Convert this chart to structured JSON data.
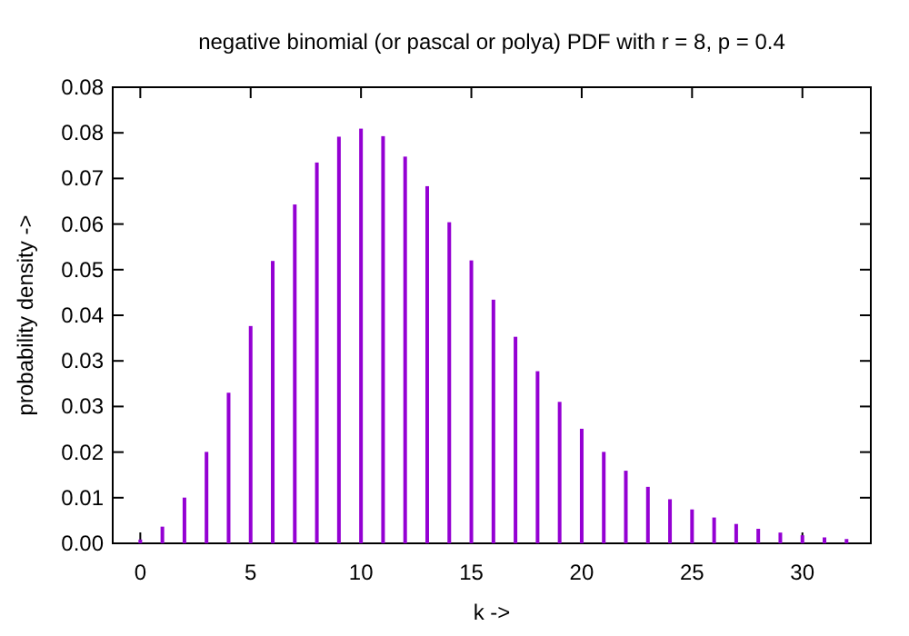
{
  "chart_data": {
    "type": "bar",
    "title": "negative binomial (or pascal or polya) PDF with r = 8, p = 0.4",
    "xlabel": "k ->",
    "ylabel": "probability density ->",
    "x": [
      0,
      1,
      2,
      3,
      4,
      5,
      6,
      7,
      8,
      9,
      10,
      11,
      12,
      13,
      14,
      15,
      16,
      17,
      18,
      19,
      20,
      21,
      22,
      23,
      24,
      25,
      26,
      27,
      28,
      29,
      30,
      31,
      32
    ],
    "values": [
      0.0007,
      0.0031,
      0.0085,
      0.017,
      0.028,
      0.0404,
      0.0525,
      0.063,
      0.0708,
      0.0756,
      0.0771,
      0.0757,
      0.0719,
      0.0664,
      0.0597,
      0.0526,
      0.0453,
      0.0384,
      0.032,
      0.0263,
      0.0213,
      0.017,
      0.0135,
      0.0105,
      0.0082,
      0.0063,
      0.0048,
      0.0036,
      0.0027,
      0.002,
      0.0015,
      0.0011,
      0.0008
    ],
    "color": "#9400d3",
    "xlim": [
      -1.25,
      33.1
    ],
    "xticks": [
      0,
      5,
      10,
      15,
      20,
      25,
      30
    ],
    "ylim": [
      0,
      0.0848
    ],
    "yticks": [
      {
        "value": 0,
        "label": "0.00"
      },
      {
        "value": 0.00848,
        "label": "0.01"
      },
      {
        "value": 0.01696,
        "label": "0.02"
      },
      {
        "value": 0.02544,
        "label": "0.03"
      },
      {
        "value": 0.03392,
        "label": "0.03"
      },
      {
        "value": 0.0424,
        "label": "0.04"
      },
      {
        "value": 0.05088,
        "label": "0.05"
      },
      {
        "value": 0.05936,
        "label": "0.06"
      },
      {
        "value": 0.06784,
        "label": "0.07"
      },
      {
        "value": 0.07632,
        "label": "0.08"
      },
      {
        "value": 0.0848,
        "label": "0.08"
      }
    ],
    "grid": false
  }
}
